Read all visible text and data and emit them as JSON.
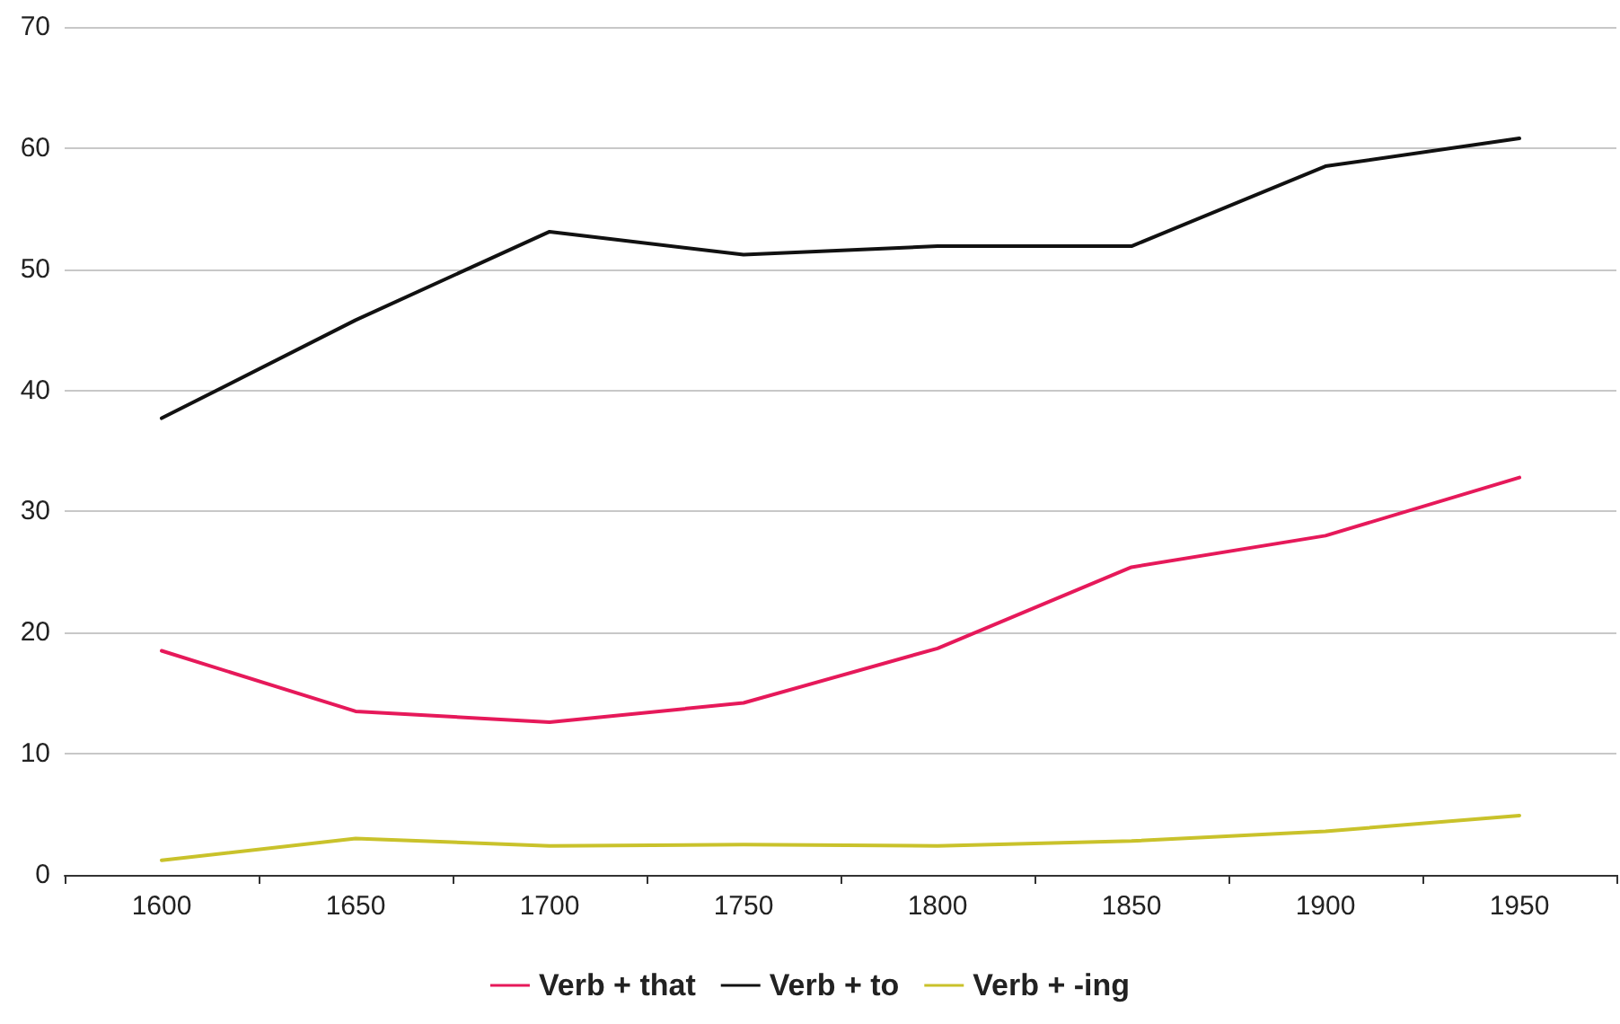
{
  "chart_data": {
    "type": "line",
    "categories": [
      "1600",
      "1650",
      "1700",
      "1750",
      "1800",
      "1850",
      "1900",
      "1950"
    ],
    "series": [
      {
        "name": "Verb + that",
        "color": "#e6195a",
        "values": [
          18.5,
          13.5,
          12.6,
          14.2,
          18.7,
          25.4,
          28.0,
          32.8
        ]
      },
      {
        "name": "Verb + to",
        "color": "#111111",
        "values": [
          37.7,
          45.8,
          53.1,
          51.2,
          51.9,
          51.9,
          58.5,
          60.8
        ]
      },
      {
        "name": "Verb + -ing",
        "color": "#c9c22b",
        "values": [
          1.2,
          3.0,
          2.4,
          2.5,
          2.4,
          2.8,
          3.6,
          4.9
        ]
      }
    ],
    "ylim": [
      0,
      70
    ],
    "yticks": [
      0,
      10,
      20,
      30,
      40,
      50,
      60,
      70
    ],
    "grid": "y",
    "legend": "bottom",
    "marker": "none",
    "line_style": "solid"
  }
}
